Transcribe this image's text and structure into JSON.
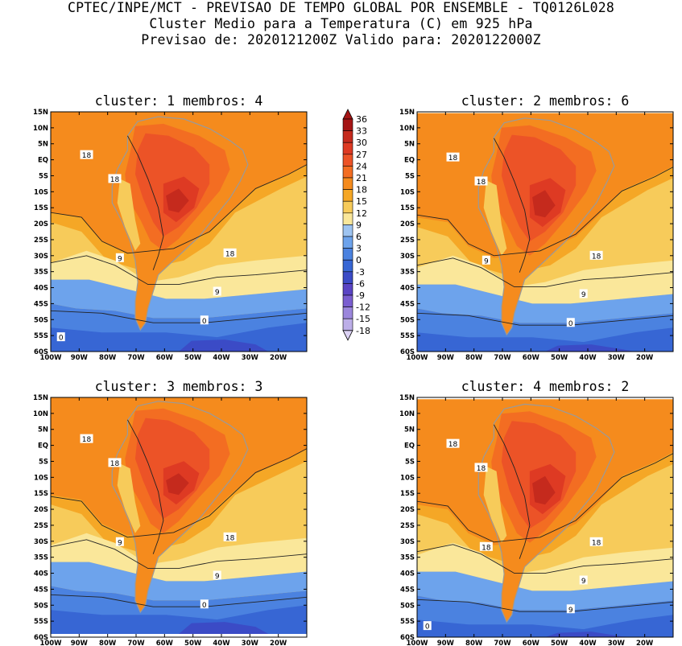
{
  "header": {
    "line1": "CPTEC/INPE/MCT - PREVISAO DE TEMPO GLOBAL POR ENSEMBLE - TQ0126L028",
    "line2": "Cluster Medio para a Temperatura (C) em 925 hPa",
    "line3": "Previsao de: 2020121200Z   Valido para: 2020122000Z"
  },
  "panels": [
    {
      "title": "cluster: 1  membros: 4",
      "contour_labels": [
        "18",
        "18",
        "18",
        "9",
        "9",
        "0",
        "0"
      ]
    },
    {
      "title": "cluster: 2  membros: 6",
      "contour_labels": [
        "18",
        "18",
        "18",
        "9",
        "9",
        "0"
      ]
    },
    {
      "title": "cluster: 3  membros: 3",
      "contour_labels": [
        "18",
        "18",
        "18",
        "9",
        "9",
        "0"
      ]
    },
    {
      "title": "cluster: 4  membros: 2",
      "contour_labels": [
        "18",
        "18",
        "18",
        "18",
        "9",
        "9",
        "0"
      ]
    }
  ],
  "axes": {
    "lat_labels": [
      "15N",
      "10N",
      "5N",
      "EQ",
      "5S",
      "10S",
      "15S",
      "20S",
      "25S",
      "30S",
      "35S",
      "40S",
      "45S",
      "50S",
      "55S",
      "60S"
    ],
    "lon_labels": [
      "100W",
      "90W",
      "80W",
      "70W",
      "60W",
      "50W",
      "40W",
      "30W",
      "20W"
    ]
  },
  "colorbar": {
    "levels": [
      "36",
      "33",
      "30",
      "27",
      "24",
      "21",
      "18",
      "15",
      "12",
      "9",
      "6",
      "3",
      "0",
      "-3",
      "-6",
      "-9",
      "-12",
      "-15",
      "-18"
    ],
    "colors": [
      "#a51515",
      "#c52a1d",
      "#de3a23",
      "#ec5327",
      "#f36d22",
      "#f58b1d",
      "#f5a726",
      "#f7cb5a",
      "#fae79a",
      "#9ec4f1",
      "#6da3ec",
      "#4b82e0",
      "#3766d4",
      "#3b4bc6",
      "#5a44c4",
      "#7a5ed0",
      "#9b86dc",
      "#bcaee8",
      "#dcd2f4"
    ]
  }
}
